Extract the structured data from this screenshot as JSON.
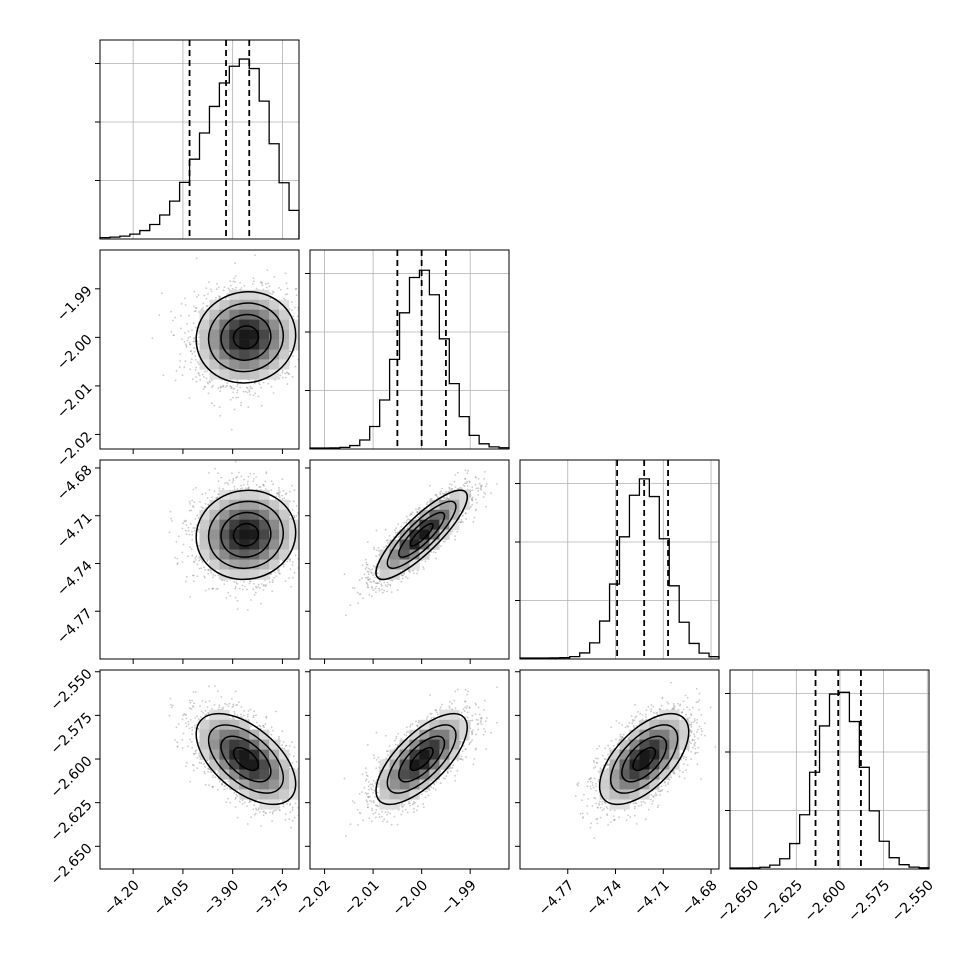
{
  "chart_data": {
    "type": "corner",
    "title": "",
    "parameters": [
      {
        "index": 0,
        "range": [
          -4.3,
          -3.7
        ],
        "ticks": [
          -4.2,
          -4.05,
          -3.9,
          -3.75
        ],
        "tick_labels": [
          "−4.20",
          "−4.05",
          "−3.90",
          "−3.75"
        ],
        "quantiles": [
          -4.03,
          -3.92,
          -3.85
        ],
        "peak": -3.86,
        "sigma": 0.075
      },
      {
        "index": 1,
        "range": [
          -2.023,
          -1.982
        ],
        "ticks": [
          -2.02,
          -2.01,
          -2.0,
          -1.99
        ],
        "tick_labels": [
          "−2.02",
          "−2.01",
          "−2.00",
          "−1.99"
        ],
        "quantiles": [
          -2.005,
          -2.0,
          -1.995
        ],
        "peak": -2.0,
        "sigma": 0.0047
      },
      {
        "index": 2,
        "range": [
          -4.8,
          -4.675
        ],
        "ticks": [
          -4.77,
          -4.74,
          -4.71,
          -4.68
        ],
        "tick_labels": [
          "−4.77",
          "−4.74",
          "−4.71",
          "−4.68"
        ],
        "quantiles": [
          -4.739,
          -4.722,
          -4.707
        ],
        "peak": -4.722,
        "sigma": 0.014
      },
      {
        "index": 3,
        "range": [
          -2.663,
          -2.549
        ],
        "ticks": [
          -2.65,
          -2.625,
          -2.6,
          -2.575,
          -2.55
        ],
        "tick_labels": [
          "−2.650",
          "−2.625",
          "−2.600",
          "−2.575",
          "−2.550"
        ],
        "quantiles": [
          -2.614,
          -2.601,
          -2.588
        ],
        "peak": -2.6,
        "sigma": 0.013
      }
    ],
    "histogram_bins": 20,
    "correlations": {
      "1,0": 0.05,
      "2,0": 0.05,
      "2,1": 0.85,
      "3,0": -0.55,
      "3,1": 0.7,
      "3,2": 0.6
    },
    "contour_levels": [
      "0.5 sigma",
      "1 sigma",
      "1.5 sigma",
      "2 sigma"
    ],
    "grid": true,
    "legend": "none"
  }
}
